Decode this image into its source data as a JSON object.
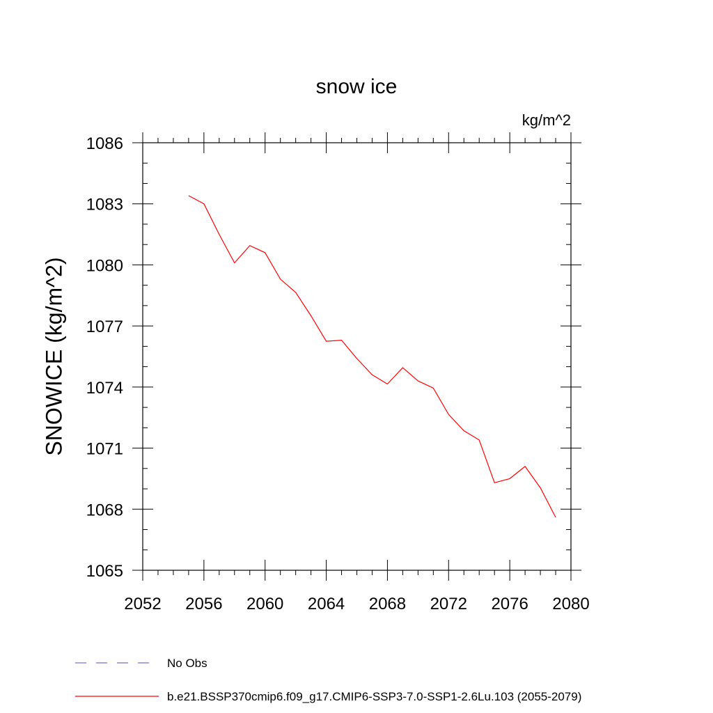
{
  "chart_data": {
    "type": "line",
    "title": "snow ice",
    "units": "kg/m^2",
    "xlabel": "",
    "ylabel": "SNOWICE  (kg/m^2)",
    "xlim": [
      2052,
      2080
    ],
    "ylim": [
      1065,
      1086
    ],
    "xticks": [
      2052,
      2056,
      2060,
      2064,
      2068,
      2072,
      2076,
      2080
    ],
    "yticks": [
      1065,
      1068,
      1071,
      1074,
      1077,
      1080,
      1083,
      1086
    ],
    "grid": false,
    "legend_position": "bottom",
    "series": [
      {
        "name": "No Obs",
        "color": "#7b68c9",
        "style": "dashed",
        "x": [],
        "y": []
      },
      {
        "name": "b.e21.BSSP370cmip6.f09_g17.CMIP6-SSP3-7.0-SSP1-2.6Lu.103 (2055-2079)",
        "color": "#ff0000",
        "style": "solid",
        "x": [
          2055,
          2056,
          2057,
          2058,
          2059,
          2060,
          2061,
          2062,
          2063,
          2064,
          2065,
          2066,
          2067,
          2068,
          2069,
          2070,
          2071,
          2072,
          2073,
          2074,
          2075,
          2076,
          2077,
          2078,
          2079
        ],
        "y": [
          1083.4,
          1083.0,
          1081.5,
          1080.1,
          1080.95,
          1080.6,
          1079.3,
          1078.65,
          1077.5,
          1076.25,
          1076.3,
          1075.4,
          1074.6,
          1074.15,
          1074.95,
          1074.3,
          1073.95,
          1072.65,
          1071.85,
          1071.4,
          1069.3,
          1069.5,
          1070.1,
          1069.05,
          1067.6
        ]
      }
    ]
  }
}
